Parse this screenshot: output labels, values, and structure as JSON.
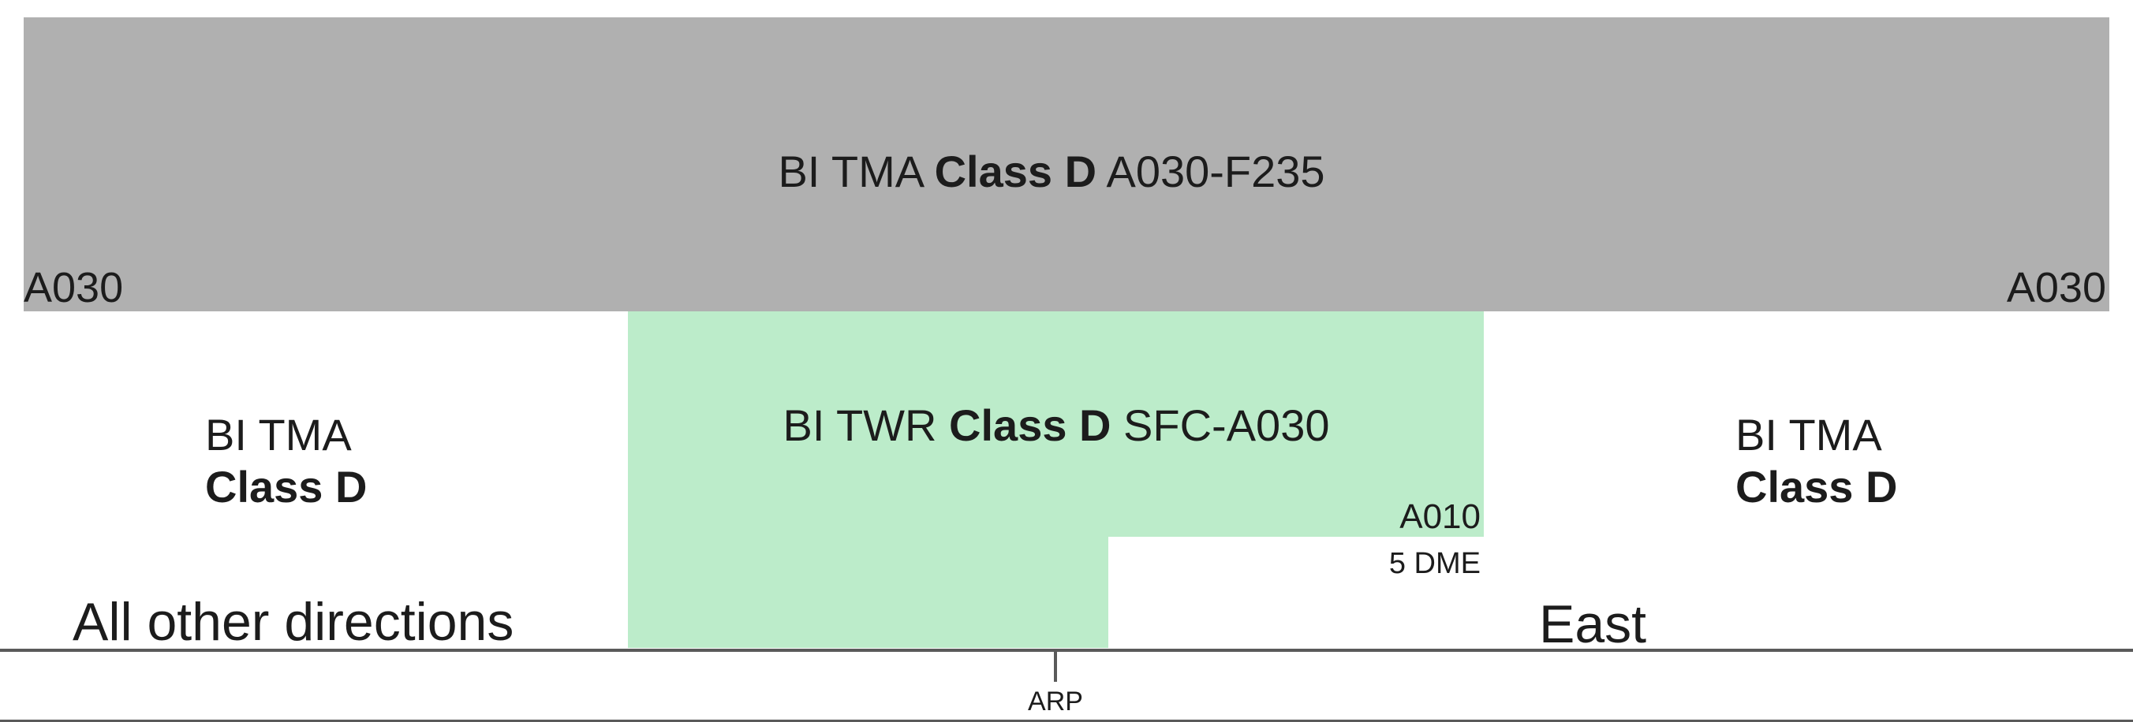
{
  "colors": {
    "tma_fill": "#b0b0b0",
    "twr_fill": "#bcecca",
    "ground_line": "#5a5a5a",
    "text": "#1c1c1c"
  },
  "tma_upper": {
    "prefix": "BI TMA",
    "class": "Class D",
    "limits": "A030-F235",
    "base_left": "A030",
    "base_right": "A030"
  },
  "twr": {
    "prefix": "BI TWR",
    "class": "Class D",
    "limits": "SFC-A030",
    "step_altitude": "A010",
    "step_distance": "5 DME"
  },
  "tma_side_left": {
    "name": "BI TMA",
    "class": "Class D"
  },
  "tma_side_right": {
    "name": "BI TMA",
    "class": "Class D"
  },
  "direction_left": "All other directions",
  "direction_right": "East",
  "reference_point": "ARP"
}
